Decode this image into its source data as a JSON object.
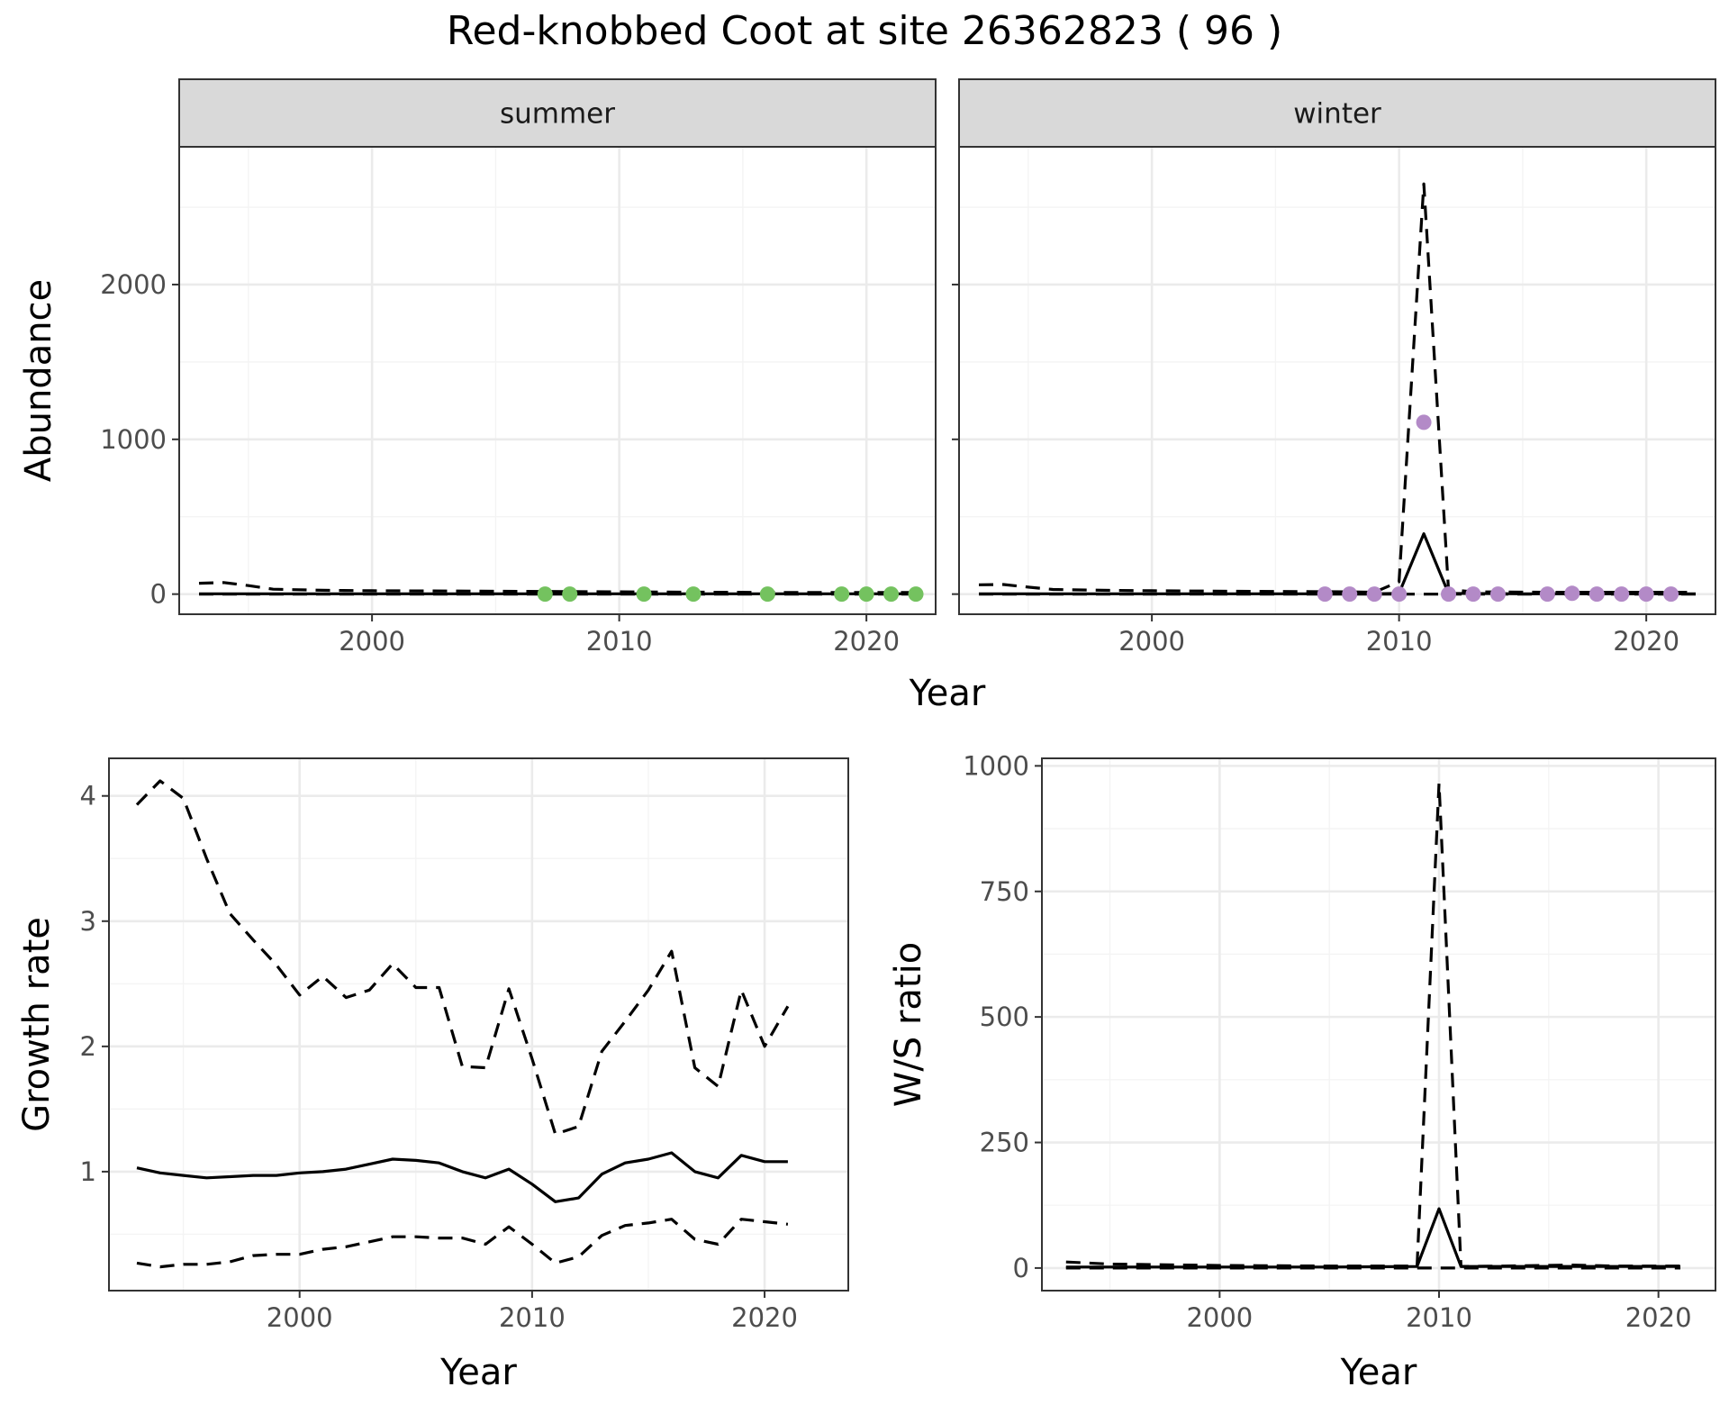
{
  "title": "Red-knobbed Coot at site 26362823 ( 96 )",
  "colors": {
    "summer_points": "#74c25f",
    "winter_points": "#b38ac7"
  },
  "chart_data": [
    {
      "id": "abundance_summer",
      "type": "line",
      "strip": "summer",
      "xlabel": "Year",
      "ylabel": "Abundance",
      "xlim": [
        1992.2,
        2022.8
      ],
      "ylim": [
        -130,
        2890
      ],
      "xticks": [
        2000,
        2010,
        2020
      ],
      "yticks": [
        0,
        1000,
        2000
      ],
      "series": [
        {
          "style": "solid",
          "x": [
            1993,
            1996,
            2000,
            2005,
            2010,
            2015,
            2020,
            2022
          ],
          "y": [
            2,
            2,
            2,
            2,
            2,
            2,
            2,
            2
          ]
        },
        {
          "style": "dashed",
          "x": [
            1993,
            1994,
            1995,
            1996,
            1998,
            2000,
            2003,
            2006,
            2010,
            2014,
            2018,
            2022
          ],
          "y": [
            70,
            75,
            55,
            32,
            25,
            22,
            20,
            18,
            15,
            12,
            10,
            10
          ]
        },
        {
          "style": "dashed",
          "x": [
            1993,
            2022
          ],
          "y": [
            0,
            0
          ]
        },
        {
          "style": "points",
          "x": [
            2007,
            2008,
            2011,
            2013,
            2016,
            2019,
            2020,
            2021,
            2022
          ],
          "y": [
            0,
            0,
            0,
            0,
            0,
            0,
            0,
            0,
            0
          ]
        }
      ]
    },
    {
      "id": "abundance_winter",
      "type": "line",
      "strip": "winter",
      "xlabel": "Year",
      "ylabel": "",
      "xlim": [
        1992.2,
        2022.8
      ],
      "ylim": [
        -130,
        2890
      ],
      "xticks": [
        2000,
        2010,
        2020
      ],
      "yticks": [
        0,
        1000,
        2000
      ],
      "series": [
        {
          "style": "solid",
          "x": [
            1993,
            2000,
            2005,
            2009,
            2010,
            2011,
            2012,
            2015,
            2022
          ],
          "y": [
            2,
            2,
            2,
            2,
            5,
            390,
            5,
            2,
            2
          ]
        },
        {
          "style": "dashed",
          "x": [
            1993,
            1994,
            1995,
            1996,
            1998,
            2000,
            2004,
            2008,
            2009,
            2010,
            2011,
            2012,
            2013,
            2016,
            2022
          ],
          "y": [
            60,
            62,
            45,
            30,
            25,
            22,
            18,
            15,
            12,
            80,
            2650,
            30,
            15,
            12,
            12
          ]
        },
        {
          "style": "dashed",
          "x": [
            1993,
            2022
          ],
          "y": [
            0,
            0
          ]
        },
        {
          "style": "points",
          "x": [
            2007,
            2008,
            2009,
            2010,
            2011,
            2012,
            2013,
            2014,
            2016,
            2017,
            2018,
            2019,
            2020,
            2021
          ],
          "y": [
            0,
            0,
            0,
            0,
            1110,
            0,
            0,
            0,
            0,
            5,
            0,
            0,
            0,
            0
          ]
        }
      ]
    },
    {
      "id": "growth_rate",
      "type": "line",
      "xlabel": "Year",
      "ylabel": "Growth rate",
      "xlim": [
        1991.8,
        2023.6
      ],
      "ylim": [
        0.05,
        4.3
      ],
      "xticks": [
        2000,
        2010,
        2020
      ],
      "yticks": [
        1,
        2,
        3,
        4
      ],
      "series": [
        {
          "style": "solid",
          "x": [
            1993,
            1994,
            1995,
            1996,
            1997,
            1998,
            1999,
            2000,
            2001,
            2002,
            2003,
            2004,
            2005,
            2006,
            2007,
            2008,
            2009,
            2010,
            2011,
            2012,
            2013,
            2014,
            2015,
            2016,
            2017,
            2018,
            2019,
            2020,
            2021
          ],
          "y": [
            1.03,
            0.99,
            0.97,
            0.95,
            0.96,
            0.97,
            0.97,
            0.99,
            1.0,
            1.02,
            1.06,
            1.1,
            1.09,
            1.07,
            1.0,
            0.95,
            1.02,
            0.9,
            0.76,
            0.79,
            0.98,
            1.07,
            1.1,
            1.15,
            1.0,
            0.95,
            1.13,
            1.08,
            1.08
          ]
        },
        {
          "style": "dashed",
          "x": [
            1993,
            1994,
            1995,
            1996,
            1997,
            1998,
            1999,
            2000,
            2001,
            2002,
            2003,
            2004,
            2005,
            2006,
            2007,
            2008,
            2009,
            2010,
            2011,
            2012,
            2013,
            2014,
            2015,
            2016,
            2017,
            2018,
            2019,
            2020,
            2021
          ],
          "y": [
            3.93,
            4.12,
            3.98,
            3.5,
            3.06,
            2.85,
            2.65,
            2.41,
            2.56,
            2.39,
            2.45,
            2.66,
            2.47,
            2.47,
            1.84,
            1.83,
            2.46,
            1.9,
            1.3,
            1.36,
            1.96,
            2.2,
            2.45,
            2.76,
            1.83,
            1.68,
            2.45,
            2.0,
            2.32
          ]
        },
        {
          "style": "dashed",
          "x": [
            1993,
            1994,
            1995,
            1996,
            1997,
            1998,
            1999,
            2000,
            2001,
            2002,
            2003,
            2004,
            2005,
            2006,
            2007,
            2008,
            2009,
            2010,
            2011,
            2012,
            2013,
            2014,
            2015,
            2016,
            2017,
            2018,
            2019,
            2020,
            2021
          ],
          "y": [
            0.27,
            0.24,
            0.26,
            0.26,
            0.28,
            0.33,
            0.34,
            0.34,
            0.38,
            0.4,
            0.44,
            0.48,
            0.48,
            0.47,
            0.47,
            0.42,
            0.56,
            0.42,
            0.27,
            0.32,
            0.49,
            0.57,
            0.59,
            0.62,
            0.46,
            0.42,
            0.62,
            0.6,
            0.58
          ]
        }
      ]
    },
    {
      "id": "ws_ratio",
      "type": "line",
      "xlabel": "Year",
      "ylabel": "W/S ratio",
      "xlim": [
        1991.9,
        2022.6
      ],
      "ylim": [
        -45,
        1015
      ],
      "xticks": [
        2000,
        2010,
        2020
      ],
      "yticks": [
        0,
        250,
        500,
        750,
        1000
      ],
      "series": [
        {
          "style": "solid",
          "x": [
            1993,
            2000,
            2005,
            2009,
            2010,
            2011,
            2015,
            2021
          ],
          "y": [
            2,
            2,
            2,
            3,
            118,
            3,
            3,
            3
          ]
        },
        {
          "style": "dashed",
          "x": [
            1993,
            1995,
            2000,
            2005,
            2009,
            2010,
            2011,
            2013,
            2016,
            2018,
            2021
          ],
          "y": [
            12,
            8,
            5,
            4,
            4,
            965,
            3,
            4,
            6,
            4,
            4
          ]
        },
        {
          "style": "dashed",
          "x": [
            1993,
            2021
          ],
          "y": [
            0,
            0
          ]
        }
      ]
    }
  ]
}
